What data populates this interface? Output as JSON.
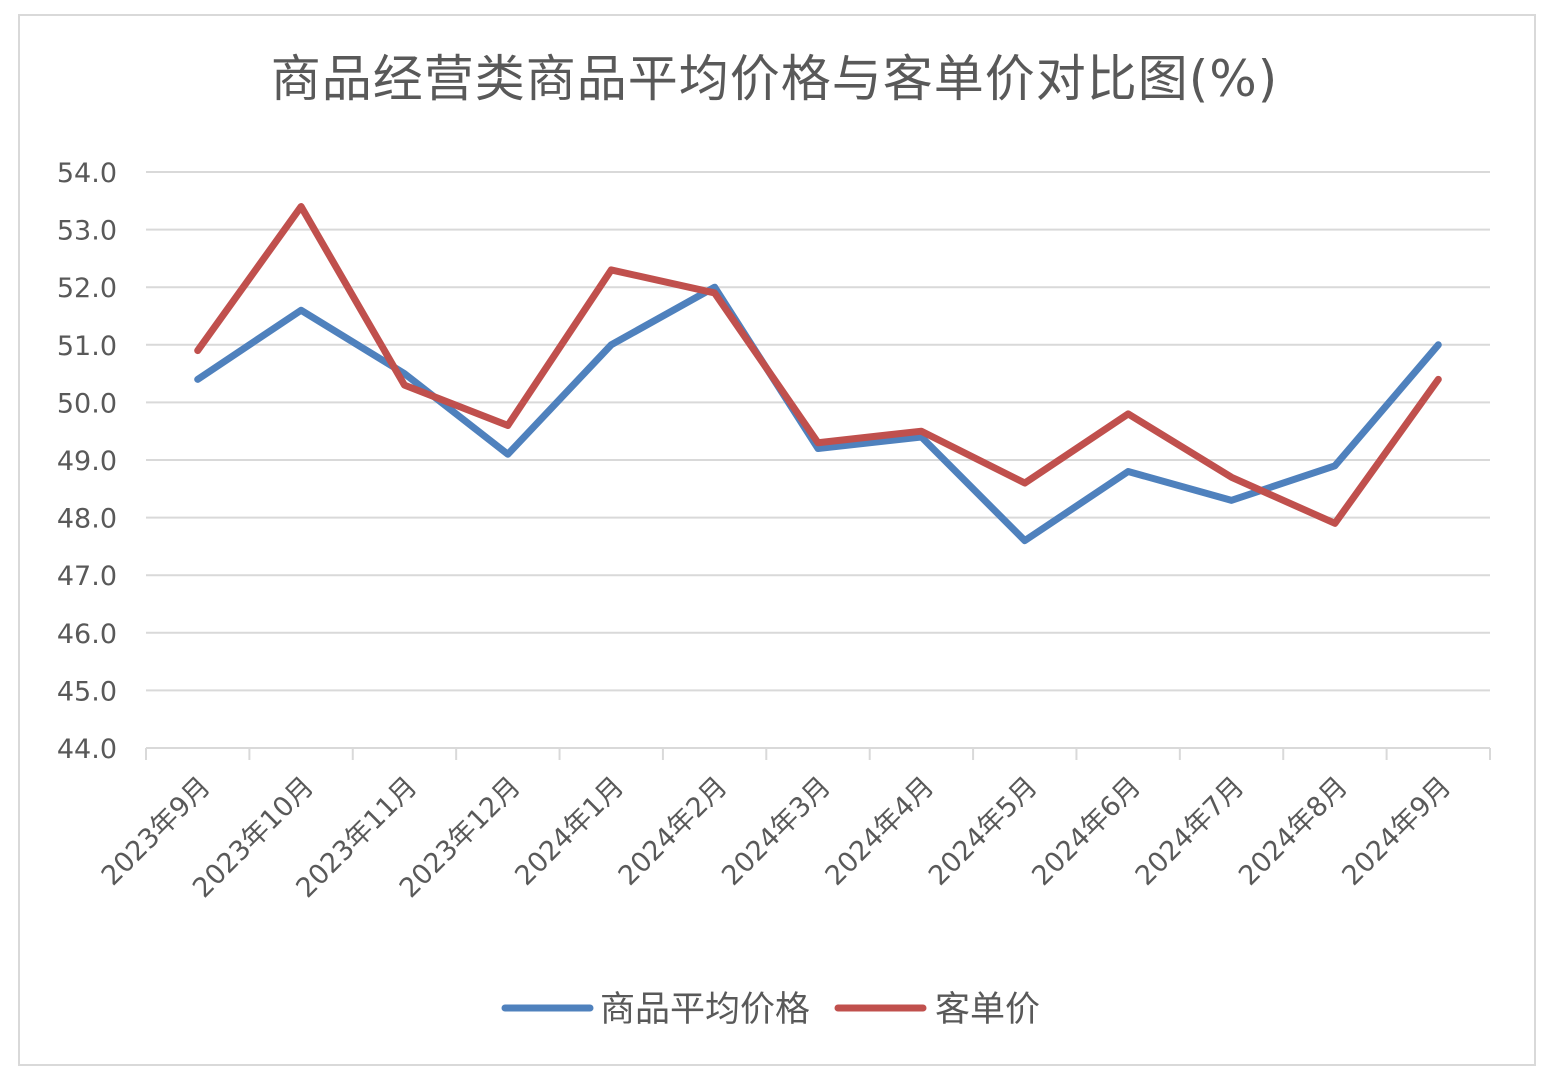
{
  "chart_data": {
    "type": "line",
    "title": "商品经营类商品平均价格与客单价对比图(%)",
    "xlabel": "",
    "ylabel": "",
    "categories": [
      "2023年9月",
      "2023年10月",
      "2023年11月",
      "2023年12月",
      "2024年1月",
      "2024年2月",
      "2024年3月",
      "2024年4月",
      "2024年5月",
      "2024年6月",
      "2024年7月",
      "2024年8月",
      "2024年9月"
    ],
    "ylim": [
      44.0,
      54.0
    ],
    "yticks": [
      "44.0",
      "45.0",
      "46.0",
      "47.0",
      "48.0",
      "49.0",
      "50.0",
      "51.0",
      "52.0",
      "53.0",
      "54.0"
    ],
    "grid": true,
    "legend_position": "bottom",
    "series": [
      {
        "name": "商品平均价格",
        "color": "#4f81bd",
        "values": [
          50.4,
          51.6,
          50.5,
          49.1,
          51.0,
          52.0,
          49.2,
          49.4,
          47.6,
          48.8,
          48.3,
          48.9,
          51.0
        ]
      },
      {
        "name": "客单价",
        "color": "#c0504d",
        "values": [
          50.9,
          53.4,
          50.3,
          49.6,
          52.3,
          51.9,
          49.3,
          49.5,
          48.6,
          49.8,
          48.7,
          47.9,
          50.4
        ]
      }
    ]
  }
}
